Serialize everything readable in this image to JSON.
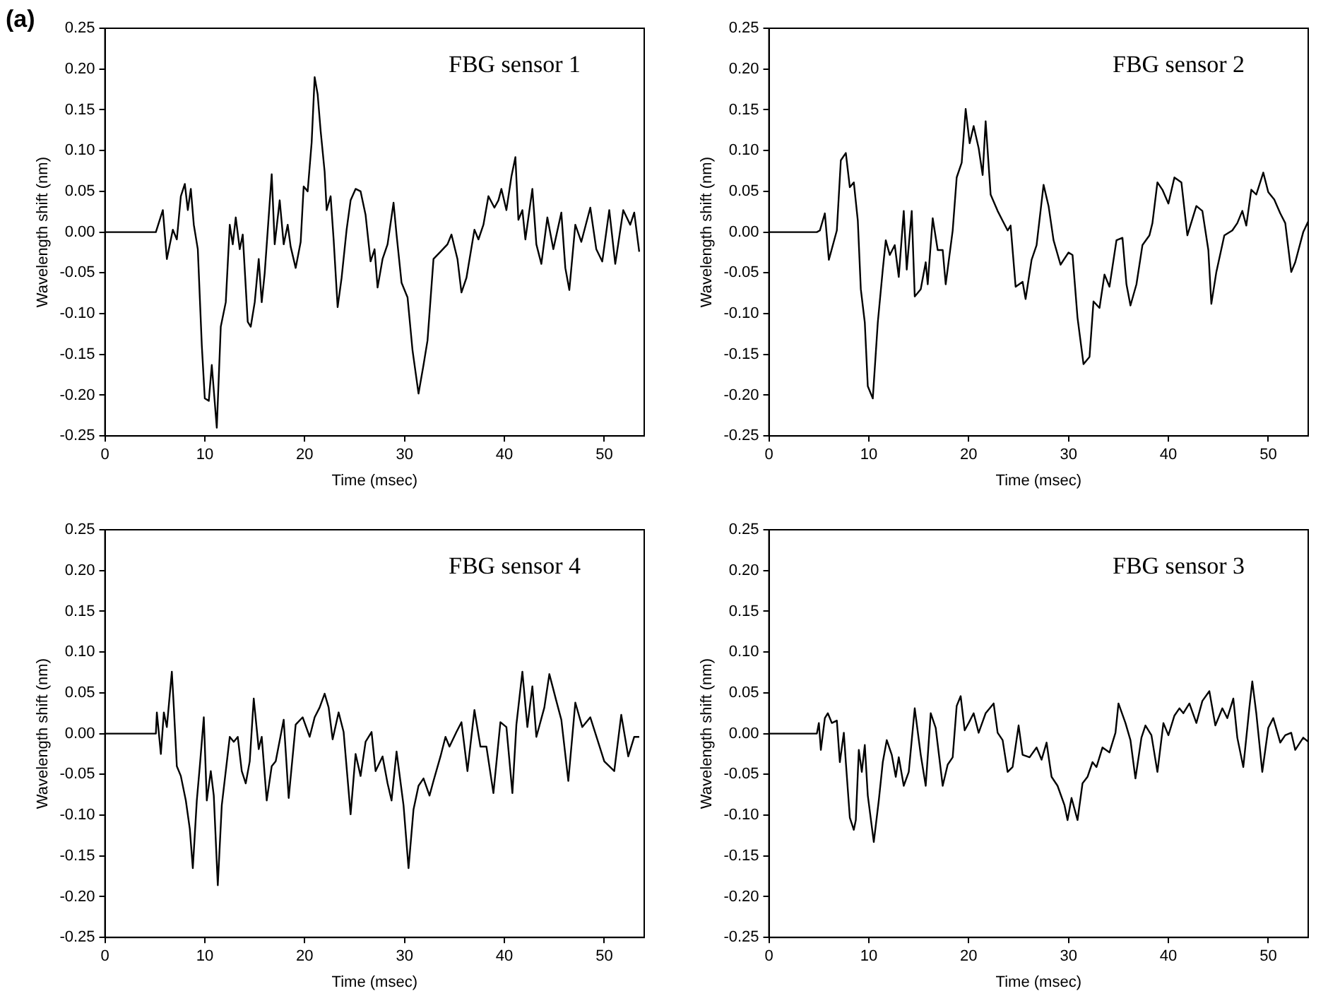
{
  "chart_data": [
    {
      "type": "line",
      "title": "FBG sensor 1",
      "annotations": [
        "(a)"
      ],
      "xlabel": "Time (msec)",
      "ylabel": "Wavelength shift (nm)",
      "xlim": [
        0,
        54
      ],
      "xticks": [
        0,
        10,
        20,
        30,
        40,
        50
      ],
      "ylim": [
        -0.25,
        0.25
      ],
      "yticks": [
        {
          "value": -0.25,
          "label": "-0.25"
        },
        {
          "value": -0.2,
          "label": "-0.20"
        },
        {
          "value": -0.15,
          "label": "-0.15"
        },
        {
          "value": -0.1,
          "label": "-0.10"
        },
        {
          "value": -0.05,
          "label": "-0.05"
        },
        {
          "value": 0,
          "label": "0.00"
        },
        {
          "value": 0.05,
          "label": "0.05"
        },
        {
          "value": 0.1,
          "label": "0.10"
        },
        {
          "value": 0.15,
          "label": "0.15"
        },
        {
          "value": 0.2,
          "label": "0.20"
        },
        {
          "value": 0.25,
          "label": "0.25"
        }
      ],
      "grid": false,
      "legend": false,
      "marker": "none",
      "line_style": "solid",
      "series": [
        {
          "color": "#000000",
          "x": [
            0,
            5.1,
            5.8,
            6.2,
            6.8,
            7.2,
            7.6,
            8.0,
            8.3,
            8.6,
            8.9,
            9.3,
            9.7,
            10.0,
            10.4,
            10.7,
            11.2,
            11.6,
            12.1,
            12.5,
            12.8,
            13.1,
            13.5,
            13.8,
            14.3,
            14.6,
            15.0,
            15.4,
            15.7,
            16.0,
            16.7,
            17.0,
            17.5,
            17.9,
            18.3,
            18.6,
            19.1,
            19.6,
            19.9,
            20.3,
            20.7,
            21.0,
            21.3,
            21.6,
            22.0,
            22.2,
            22.6,
            22.9,
            23.3,
            23.7,
            24.2,
            24.6,
            25.1,
            25.6,
            26.1,
            26.6,
            27.0,
            27.3,
            27.8,
            28.3,
            28.9,
            29.2,
            29.7,
            30.3,
            30.8,
            31.4,
            31.9,
            32.3,
            32.9,
            33.6,
            34.3,
            34.7,
            35.3,
            35.7,
            36.2,
            37.0,
            37.4,
            37.9,
            38.4,
            39.0,
            39.4,
            39.7,
            40.2,
            40.7,
            41.1,
            41.4,
            41.8,
            42.1,
            42.8,
            43.2,
            43.7,
            44.3,
            44.9,
            45.7,
            46.1,
            46.5,
            47.1,
            47.7,
            48.6,
            49.2,
            49.8,
            50.5,
            51.1,
            51.9,
            52.6,
            53.0,
            53.5
          ],
          "values": [
            0,
            0,
            0.027,
            -0.033,
            0.003,
            -0.009,
            0.044,
            0.059,
            0.027,
            0.053,
            0.009,
            -0.021,
            -0.139,
            -0.204,
            -0.207,
            -0.163,
            -0.24,
            -0.116,
            -0.086,
            0.009,
            -0.015,
            0.018,
            -0.021,
            -0.003,
            -0.11,
            -0.116,
            -0.086,
            -0.033,
            -0.086,
            -0.05,
            0.071,
            -0.015,
            0.039,
            -0.015,
            0.009,
            -0.018,
            -0.044,
            -0.012,
            0.056,
            0.05,
            0.11,
            0.19,
            0.169,
            0.124,
            0.074,
            0.027,
            0.044,
            -0.009,
            -0.092,
            -0.056,
            0.003,
            0.039,
            0.053,
            0.05,
            0.021,
            -0.036,
            -0.021,
            -0.068,
            -0.033,
            -0.015,
            0.036,
            -0.003,
            -0.062,
            -0.08,
            -0.145,
            -0.198,
            -0.163,
            -0.133,
            -0.033,
            -0.024,
            -0.015,
            -0.003,
            -0.033,
            -0.074,
            -0.056,
            0.003,
            -0.009,
            0.009,
            0.044,
            0.03,
            0.039,
            0.053,
            0.027,
            0.068,
            0.092,
            0.015,
            0.027,
            -0.009,
            0.053,
            -0.015,
            -0.039,
            0.018,
            -0.021,
            0.024,
            -0.044,
            -0.071,
            0.009,
            -0.012,
            0.03,
            -0.021,
            -0.036,
            0.027,
            -0.039,
            0.027,
            0.009,
            0.024,
            -0.024
          ]
        }
      ]
    },
    {
      "type": "line",
      "title": "FBG sensor 2",
      "xlabel": "Time (msec)",
      "ylabel": "Wavelength shift (nm)",
      "xlim": [
        0,
        54
      ],
      "xticks": [
        0,
        10,
        20,
        30,
        40,
        50
      ],
      "ylim": [
        -0.25,
        0.25
      ],
      "yticks": [
        {
          "value": -0.25,
          "label": "-0.25"
        },
        {
          "value": -0.2,
          "label": "-0.20"
        },
        {
          "value": -0.15,
          "label": "-0.15"
        },
        {
          "value": -0.1,
          "label": "-0.10"
        },
        {
          "value": -0.05,
          "label": "-0.05"
        },
        {
          "value": 0,
          "label": "0.00"
        },
        {
          "value": 0.05,
          "label": "0.05"
        },
        {
          "value": 0.1,
          "label": "0.10"
        },
        {
          "value": 0.15,
          "label": "0.15"
        },
        {
          "value": 0.2,
          "label": "0.20"
        },
        {
          "value": 0.25,
          "label": "0.25"
        }
      ],
      "grid": false,
      "legend": false,
      "marker": "none",
      "line_style": "solid",
      "series": [
        {
          "color": "#000000",
          "x": [
            0,
            4.8,
            5.1,
            5.6,
            6.0,
            6.8,
            7.2,
            7.7,
            8.1,
            8.5,
            8.9,
            9.2,
            9.6,
            9.9,
            10.4,
            10.9,
            11.4,
            11.7,
            12.1,
            12.6,
            13.0,
            13.5,
            13.8,
            14.3,
            14.6,
            15.2,
            15.7,
            15.9,
            16.4,
            16.9,
            17.4,
            17.7,
            18.4,
            18.8,
            19.3,
            19.7,
            20.1,
            20.5,
            21.0,
            21.4,
            21.7,
            22.2,
            22.9,
            23.4,
            23.9,
            24.2,
            24.7,
            25.4,
            25.7,
            26.3,
            26.8,
            27.5,
            28.0,
            28.5,
            29.2,
            30.0,
            30.4,
            30.9,
            31.5,
            32.1,
            32.5,
            33.1,
            33.6,
            34.1,
            34.8,
            35.4,
            35.8,
            36.2,
            36.8,
            37.4,
            38.1,
            38.4,
            38.9,
            39.4,
            40.0,
            40.6,
            41.3,
            41.9,
            42.8,
            43.4,
            44.0,
            44.3,
            44.8,
            45.6,
            46.4,
            46.9,
            47.4,
            47.8,
            48.3,
            48.8,
            49.5,
            50.0,
            50.6,
            51.2,
            51.7,
            52.3,
            52.7,
            53.5,
            54
          ],
          "values": [
            0,
            0,
            0.002,
            0.023,
            -0.034,
            0.002,
            0.088,
            0.097,
            0.055,
            0.061,
            0.014,
            -0.07,
            -0.111,
            -0.189,
            -0.204,
            -0.111,
            -0.046,
            -0.01,
            -0.028,
            -0.016,
            -0.055,
            0.026,
            -0.046,
            0.026,
            -0.079,
            -0.07,
            -0.037,
            -0.064,
            0.017,
            -0.022,
            -0.022,
            -0.064,
            0.002,
            0.067,
            0.085,
            0.151,
            0.109,
            0.13,
            0.103,
            0.07,
            0.136,
            0.046,
            0.026,
            0.014,
            0.002,
            0.008,
            -0.067,
            -0.061,
            -0.082,
            -0.034,
            -0.016,
            0.058,
            0.032,
            -0.01,
            -0.04,
            -0.025,
            -0.028,
            -0.105,
            -0.162,
            -0.153,
            -0.085,
            -0.093,
            -0.052,
            -0.067,
            -0.01,
            -0.007,
            -0.064,
            -0.09,
            -0.064,
            -0.016,
            -0.004,
            0.011,
            0.061,
            0.052,
            0.035,
            0.067,
            0.061,
            -0.004,
            0.032,
            0.026,
            -0.022,
            -0.088,
            -0.049,
            -0.004,
            0.002,
            0.011,
            0.026,
            0.008,
            0.052,
            0.046,
            0.073,
            0.049,
            0.04,
            0.023,
            0.011,
            -0.049,
            -0.037,
            0.0,
            0.013
          ]
        }
      ]
    },
    {
      "type": "line",
      "title": "FBG sensor 4",
      "xlabel": "Time (msec)",
      "ylabel": "Wavelength shift (nm)",
      "xlim": [
        0,
        54
      ],
      "xticks": [
        0,
        10,
        20,
        30,
        40,
        50
      ],
      "ylim": [
        -0.25,
        0.25
      ],
      "yticks": [
        {
          "value": -0.25,
          "label": "-0.25"
        },
        {
          "value": -0.2,
          "label": "-0.20"
        },
        {
          "value": -0.15,
          "label": "-0.15"
        },
        {
          "value": -0.1,
          "label": "-0.10"
        },
        {
          "value": -0.05,
          "label": "-0.05"
        },
        {
          "value": 0,
          "label": "0.00"
        },
        {
          "value": 0.05,
          "label": "0.05"
        },
        {
          "value": 0.1,
          "label": "0.10"
        },
        {
          "value": 0.15,
          "label": "0.15"
        },
        {
          "value": 0.2,
          "label": "0.20"
        },
        {
          "value": 0.25,
          "label": "0.25"
        }
      ],
      "grid": false,
      "legend": false,
      "marker": "none",
      "line_style": "solid",
      "series": [
        {
          "color": "#000000",
          "x": [
            0,
            5.1,
            5.2,
            5.6,
            5.9,
            6.2,
            6.4,
            6.7,
            6.9,
            7.2,
            7.6,
            8.1,
            8.5,
            8.8,
            9.2,
            9.5,
            9.9,
            10.2,
            10.6,
            10.9,
            11.3,
            11.7,
            12.1,
            12.5,
            12.9,
            13.3,
            13.7,
            14.1,
            14.5,
            14.9,
            15.4,
            15.7,
            16.2,
            16.7,
            17.1,
            17.9,
            18.4,
            19.1,
            19.8,
            20.5,
            21.0,
            21.5,
            22.0,
            22.4,
            22.8,
            23.4,
            23.9,
            24.6,
            25.1,
            25.6,
            26.1,
            26.7,
            27.1,
            27.8,
            28.3,
            28.7,
            29.2,
            29.9,
            30.4,
            30.9,
            31.4,
            31.9,
            32.5,
            32.9,
            33.6,
            34.1,
            34.5,
            35.2,
            35.7,
            36.3,
            37.0,
            37.6,
            38.2,
            38.9,
            39.6,
            40.2,
            40.8,
            41.2,
            41.8,
            42.3,
            42.8,
            43.2,
            44.0,
            44.5,
            45.2,
            45.7,
            46.4,
            47.1,
            47.8,
            48.6,
            49.3,
            50.0,
            51.0,
            51.7,
            52.4,
            53.0,
            53.5
          ],
          "values": [
            0,
            0,
            0.026,
            -0.025,
            0.026,
            0.008,
            0.035,
            0.076,
            0.032,
            -0.04,
            -0.052,
            -0.082,
            -0.117,
            -0.165,
            -0.082,
            -0.04,
            0.02,
            -0.082,
            -0.046,
            -0.076,
            -0.186,
            -0.088,
            -0.046,
            -0.004,
            -0.01,
            -0.004,
            -0.046,
            -0.061,
            -0.034,
            0.043,
            -0.019,
            -0.004,
            -0.082,
            -0.04,
            -0.034,
            0.017,
            -0.079,
            0.011,
            0.02,
            -0.004,
            0.02,
            0.032,
            0.049,
            0.032,
            -0.007,
            0.026,
            0.002,
            -0.099,
            -0.025,
            -0.052,
            -0.01,
            0.002,
            -0.046,
            -0.028,
            -0.061,
            -0.082,
            -0.022,
            -0.088,
            -0.165,
            -0.093,
            -0.064,
            -0.055,
            -0.076,
            -0.058,
            -0.028,
            -0.004,
            -0.016,
            0.002,
            0.014,
            -0.046,
            0.029,
            -0.016,
            -0.016,
            -0.073,
            0.014,
            0.008,
            -0.073,
            0.011,
            0.076,
            0.008,
            0.058,
            -0.004,
            0.032,
            0.073,
            0.04,
            0.017,
            -0.058,
            0.038,
            0.008,
            0.02,
            -0.007,
            -0.034,
            -0.046,
            0.023,
            -0.028,
            -0.004,
            -0.004
          ]
        }
      ]
    },
    {
      "type": "line",
      "title": "FBG sensor 3",
      "xlabel": "Time (msec)",
      "ylabel": "Wavelength shift (nm)",
      "xlim": [
        0,
        54
      ],
      "xticks": [
        0,
        10,
        20,
        30,
        40,
        50
      ],
      "ylim": [
        -0.25,
        0.25
      ],
      "yticks": [
        {
          "value": -0.25,
          "label": "-0.25"
        },
        {
          "value": -0.2,
          "label": "-0.20"
        },
        {
          "value": -0.15,
          "label": "-0.15"
        },
        {
          "value": -0.1,
          "label": "-0.10"
        },
        {
          "value": -0.05,
          "label": "-0.05"
        },
        {
          "value": 0,
          "label": "0.00"
        },
        {
          "value": 0.05,
          "label": "0.05"
        },
        {
          "value": 0.1,
          "label": "0.10"
        },
        {
          "value": 0.15,
          "label": "0.15"
        },
        {
          "value": 0.2,
          "label": "0.20"
        },
        {
          "value": 0.25,
          "label": "0.25"
        }
      ],
      "grid": false,
      "legend": false,
      "marker": "none",
      "line_style": "solid",
      "series": [
        {
          "color": "#000000",
          "x": [
            0,
            4.8,
            5.0,
            5.2,
            5.6,
            5.9,
            6.3,
            6.8,
            7.1,
            7.5,
            7.7,
            8.1,
            8.5,
            8.7,
            9.0,
            9.3,
            9.6,
            9.9,
            10.5,
            11.0,
            11.4,
            11.8,
            12.3,
            12.7,
            13.0,
            13.5,
            14.0,
            14.6,
            15.2,
            15.7,
            16.2,
            16.7,
            17.4,
            17.9,
            18.4,
            18.8,
            19.2,
            19.6,
            20.0,
            20.5,
            21.0,
            21.7,
            22.5,
            22.9,
            23.4,
            23.9,
            24.4,
            25.0,
            25.4,
            26.1,
            26.8,
            27.3,
            27.8,
            28.3,
            28.9,
            29.6,
            29.9,
            30.3,
            30.9,
            31.4,
            31.9,
            32.4,
            32.8,
            33.4,
            34.1,
            34.7,
            35.0,
            35.7,
            36.2,
            36.7,
            37.3,
            37.7,
            38.3,
            38.9,
            39.5,
            40.0,
            40.6,
            41.1,
            41.5,
            42.1,
            42.8,
            43.4,
            44.1,
            44.7,
            45.4,
            45.9,
            46.5,
            46.9,
            47.5,
            48.1,
            48.4,
            48.8,
            49.4,
            50.0,
            50.5,
            51.2,
            51.7,
            52.3,
            52.7,
            53.5,
            54
          ],
          "values": [
            0,
            0,
            0.013,
            -0.02,
            0.019,
            0.025,
            0.013,
            0.016,
            -0.035,
            0.001,
            -0.035,
            -0.103,
            -0.118,
            -0.106,
            -0.02,
            -0.047,
            -0.014,
            -0.076,
            -0.133,
            -0.082,
            -0.035,
            -0.008,
            -0.026,
            -0.053,
            -0.029,
            -0.064,
            -0.047,
            0.031,
            -0.026,
            -0.064,
            0.025,
            0.007,
            -0.064,
            -0.038,
            -0.029,
            0.034,
            0.046,
            0.004,
            0.013,
            0.025,
            0.001,
            0.025,
            0.037,
            0.001,
            -0.008,
            -0.047,
            -0.041,
            0.01,
            -0.026,
            -0.029,
            -0.017,
            -0.032,
            -0.011,
            -0.053,
            -0.064,
            -0.088,
            -0.106,
            -0.079,
            -0.106,
            -0.061,
            -0.053,
            -0.035,
            -0.041,
            -0.017,
            -0.023,
            0.001,
            0.037,
            0.013,
            -0.008,
            -0.055,
            -0.005,
            0.01,
            -0.002,
            -0.047,
            0.013,
            -0.002,
            0.022,
            0.031,
            0.025,
            0.037,
            0.013,
            0.04,
            0.052,
            0.01,
            0.031,
            0.019,
            0.043,
            -0.005,
            -0.041,
            0.031,
            0.064,
            0.025,
            -0.047,
            0.007,
            0.019,
            -0.011,
            -0.002,
            0.001,
            -0.02,
            -0.005,
            -0.01
          ]
        }
      ]
    }
  ]
}
